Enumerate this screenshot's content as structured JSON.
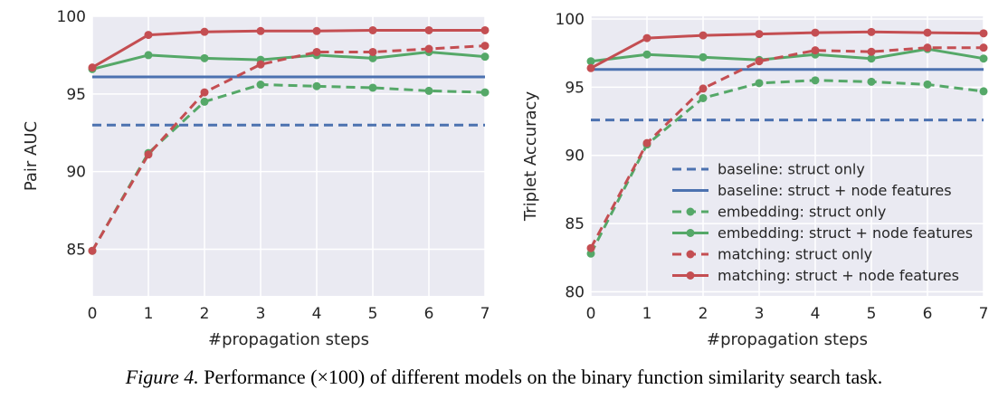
{
  "colors": {
    "blue": "#4c72b0",
    "green": "#55a868",
    "red": "#c44e52",
    "plot_bg": "#eaeaf2",
    "grid": "#ffffff"
  },
  "caption": {
    "label": "Figure 4.",
    "text": "Performance (×100) of different models on the binary function similarity search task."
  },
  "chart_data": [
    {
      "type": "line",
      "title": "",
      "xlabel": "#propagation steps",
      "ylabel": "Pair AUC",
      "x": [
        0,
        1,
        2,
        3,
        4,
        5,
        6,
        7
      ],
      "xlim": [
        0,
        7
      ],
      "ylim": [
        82,
        100
      ],
      "xticks": [
        "0",
        "1",
        "2",
        "3",
        "4",
        "5",
        "6",
        "7"
      ],
      "yticks": [
        85,
        90,
        95,
        100
      ],
      "grid": true,
      "legend": null,
      "series": [
        {
          "name": "baseline: struct only",
          "color": "blue",
          "dash": true,
          "markers": false,
          "values": [
            93.0,
            93.0,
            93.0,
            93.0,
            93.0,
            93.0,
            93.0,
            93.0
          ]
        },
        {
          "name": "baseline: struct + node features",
          "color": "blue",
          "dash": false,
          "markers": false,
          "values": [
            96.1,
            96.1,
            96.1,
            96.1,
            96.1,
            96.1,
            96.1,
            96.1
          ]
        },
        {
          "name": "embedding: struct only",
          "color": "green",
          "dash": true,
          "markers": true,
          "values": [
            84.9,
            91.2,
            94.5,
            95.6,
            95.5,
            95.4,
            95.2,
            95.1
          ]
        },
        {
          "name": "embedding: struct + node features",
          "color": "green",
          "dash": false,
          "markers": true,
          "values": [
            96.6,
            97.5,
            97.3,
            97.2,
            97.5,
            97.3,
            97.7,
            97.4
          ]
        },
        {
          "name": "matching: struct only",
          "color": "red",
          "dash": true,
          "markers": true,
          "values": [
            84.9,
            91.1,
            95.1,
            96.9,
            97.7,
            97.7,
            97.9,
            98.1
          ]
        },
        {
          "name": "matching: struct + node features",
          "color": "red",
          "dash": false,
          "markers": true,
          "values": [
            96.7,
            98.8,
            99.0,
            99.05,
            99.05,
            99.1,
            99.1,
            99.1
          ]
        }
      ]
    },
    {
      "type": "line",
      "title": "",
      "xlabel": "#propagation steps",
      "ylabel": "Triplet Accuracy",
      "x": [
        0,
        1,
        2,
        3,
        4,
        5,
        6,
        7
      ],
      "xlim": [
        0,
        7
      ],
      "ylim": [
        79.7,
        100.2
      ],
      "xticks": [
        "0",
        "1",
        "2",
        "3",
        "4",
        "5",
        "6",
        "7"
      ],
      "yticks": [
        80,
        85,
        90,
        95,
        100
      ],
      "grid": true,
      "legend": "lower-right",
      "series": [
        {
          "name": "baseline: struct only",
          "color": "blue",
          "dash": true,
          "markers": false,
          "values": [
            92.6,
            92.6,
            92.6,
            92.6,
            92.6,
            92.6,
            92.6,
            92.6
          ]
        },
        {
          "name": "baseline: struct + node features",
          "color": "blue",
          "dash": false,
          "markers": false,
          "values": [
            96.3,
            96.3,
            96.3,
            96.3,
            96.3,
            96.3,
            96.3,
            96.3
          ]
        },
        {
          "name": "embedding: struct only",
          "color": "green",
          "dash": true,
          "markers": true,
          "values": [
            82.8,
            90.8,
            94.2,
            95.3,
            95.5,
            95.4,
            95.2,
            94.7
          ]
        },
        {
          "name": "embedding: struct + node features",
          "color": "green",
          "dash": false,
          "markers": true,
          "values": [
            96.9,
            97.4,
            97.2,
            97.0,
            97.4,
            97.1,
            97.8,
            97.1
          ]
        },
        {
          "name": "matching: struct only",
          "color": "red",
          "dash": true,
          "markers": true,
          "values": [
            83.2,
            90.9,
            94.9,
            96.9,
            97.7,
            97.6,
            97.9,
            97.9
          ]
        },
        {
          "name": "matching: struct + node features",
          "color": "red",
          "dash": false,
          "markers": true,
          "values": [
            96.4,
            98.6,
            98.8,
            98.9,
            99.0,
            99.05,
            99.0,
            98.95
          ]
        }
      ]
    }
  ]
}
